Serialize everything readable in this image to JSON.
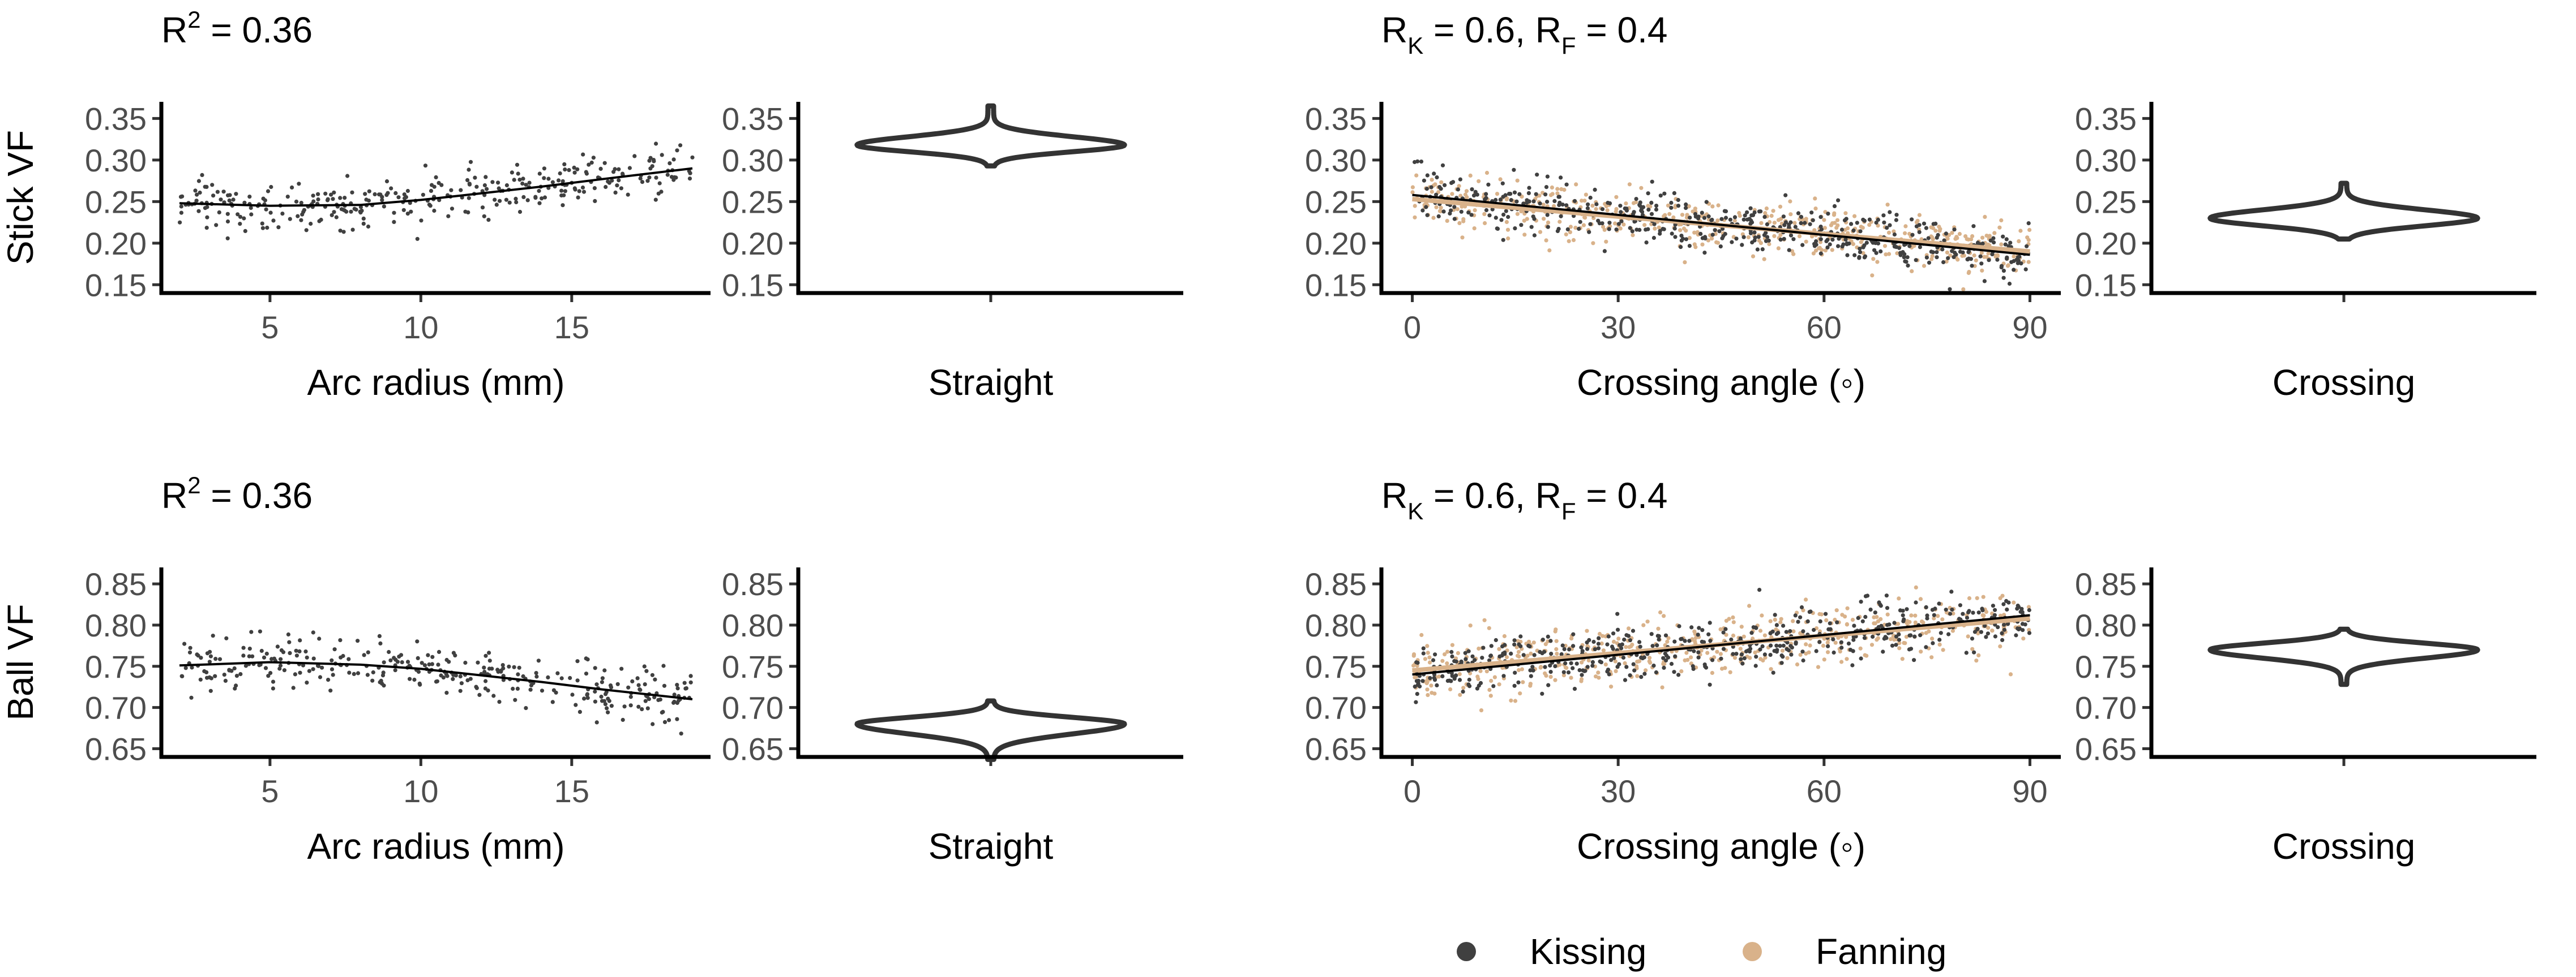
{
  "colors": {
    "kissing": "#404040",
    "fanning": "#d9b28a",
    "line": "#000000",
    "violin": "#333333"
  },
  "legend": {
    "items": [
      {
        "label": "Kissing",
        "color": "#404040"
      },
      {
        "label": "Fanning",
        "color": "#d9b28a"
      }
    ],
    "placement": "bottom-center"
  },
  "chart_data": [
    {
      "id": "stick-arc",
      "type": "scatter",
      "row": "Stick VF",
      "ylabel": "Stick VF",
      "annotation": {
        "base": "R",
        "sup": "2",
        "rest": " = 0.36"
      },
      "xlabel": "Arc radius (mm)",
      "xlim": [
        1.4,
        19.6
      ],
      "xticks": [
        5,
        10,
        15
      ],
      "ylim": [
        0.14,
        0.37
      ],
      "yticks": [
        0.15,
        0.2,
        0.25,
        0.3,
        0.35
      ],
      "yticklabels": [
        "0.15",
        "0.20",
        "0.25",
        "0.30",
        "0.35"
      ],
      "series": [
        {
          "name": "Kissing",
          "x_range": [
            2,
            19
          ],
          "trend": [
            [
              2,
              0.248
            ],
            [
              5,
              0.245
            ],
            [
              8,
              0.246
            ],
            [
              10,
              0.252
            ],
            [
              12,
              0.26
            ],
            [
              14,
              0.268
            ],
            [
              16,
              0.277
            ],
            [
              19,
              0.29
            ]
          ],
          "spread": 0.016,
          "n": 330
        }
      ],
      "fit": [
        [
          2,
          0.248
        ],
        [
          5,
          0.245
        ],
        [
          8,
          0.246
        ],
        [
          10,
          0.252
        ],
        [
          12,
          0.26
        ],
        [
          14,
          0.268
        ],
        [
          16,
          0.277
        ],
        [
          19,
          0.29
        ]
      ]
    },
    {
      "id": "stick-straight",
      "type": "violin",
      "row": "Stick VF",
      "xlabel": "Straight",
      "ylim": [
        0.14,
        0.37
      ],
      "yticks": [
        0.15,
        0.2,
        0.25,
        0.3,
        0.35
      ],
      "yticklabels": [
        "0.15",
        "0.20",
        "0.25",
        "0.30",
        "0.35"
      ],
      "violin": {
        "y_min": 0.293,
        "y_max": 0.365,
        "peak": 0.318,
        "sd_low": 0.008,
        "sd_high": 0.01,
        "half_width_frac": 0.34
      }
    },
    {
      "id": "stick-crossing",
      "type": "scatter",
      "row": "Stick VF",
      "annotation": {
        "base": "R",
        "sub1": "K",
        "mid": " = 0.6, R",
        "sub2": "F",
        "rest": " = 0.4"
      },
      "xlabel": "Crossing angle (◦)",
      "xlim": [
        -4.5,
        94.5
      ],
      "xticks": [
        0,
        30,
        60,
        90
      ],
      "ylim": [
        0.14,
        0.37
      ],
      "yticks": [
        0.15,
        0.2,
        0.25,
        0.3,
        0.35
      ],
      "yticklabels": [
        "0.15",
        "0.20",
        "0.25",
        "0.30",
        "0.35"
      ],
      "series": [
        {
          "name": "Fanning",
          "x_range": [
            0,
            90
          ],
          "trend": [
            [
              0,
              0.255
            ],
            [
              90,
              0.188
            ]
          ],
          "spread": 0.016,
          "n": 520
        },
        {
          "name": "Kissing",
          "x_range": [
            0,
            90
          ],
          "trend": [
            [
              0,
              0.26
            ],
            [
              90,
              0.185
            ]
          ],
          "spread": 0.016,
          "n": 520
        }
      ],
      "fit": [
        [
          0,
          0.258
        ],
        [
          90,
          0.186
        ]
      ],
      "fit_fanning": [
        [
          0,
          0.253
        ],
        [
          90,
          0.19
        ]
      ]
    },
    {
      "id": "stick-crossing-violin",
      "type": "violin",
      "row": "Stick VF",
      "xlabel": "Crossing",
      "ylim": [
        0.14,
        0.37
      ],
      "yticks": [
        0.15,
        0.2,
        0.25,
        0.3,
        0.35
      ],
      "yticklabels": [
        "0.15",
        "0.20",
        "0.25",
        "0.30",
        "0.35"
      ],
      "violin": {
        "y_min": 0.205,
        "y_max": 0.272,
        "peak": 0.23,
        "sd_low": 0.009,
        "sd_high": 0.01,
        "half_width_frac": 0.34
      }
    },
    {
      "id": "ball-arc",
      "type": "scatter",
      "row": "Ball VF",
      "ylabel": "Ball VF",
      "annotation": {
        "base": "R",
        "sup": "2",
        "rest": " = 0.36"
      },
      "xlabel": "Arc radius (mm)",
      "xlim": [
        1.4,
        19.6
      ],
      "xticks": [
        5,
        10,
        15
      ],
      "ylim": [
        0.64,
        0.87
      ],
      "yticks": [
        0.65,
        0.7,
        0.75,
        0.8,
        0.85
      ],
      "yticklabels": [
        "0.65",
        "0.70",
        "0.75",
        "0.80",
        "0.85"
      ],
      "series": [
        {
          "name": "Kissing",
          "x_range": [
            2,
            19
          ],
          "trend": [
            [
              2,
              0.751
            ],
            [
              5,
              0.755
            ],
            [
              8,
              0.752
            ],
            [
              10,
              0.747
            ],
            [
              12,
              0.739
            ],
            [
              14,
              0.731
            ],
            [
              16,
              0.722
            ],
            [
              19,
              0.71
            ]
          ],
          "spread": 0.016,
          "n": 330
        }
      ],
      "fit": [
        [
          2,
          0.751
        ],
        [
          5,
          0.755
        ],
        [
          8,
          0.752
        ],
        [
          10,
          0.747
        ],
        [
          12,
          0.739
        ],
        [
          14,
          0.731
        ],
        [
          16,
          0.722
        ],
        [
          19,
          0.71
        ]
      ]
    },
    {
      "id": "ball-straight",
      "type": "violin",
      "row": "Ball VF",
      "xlabel": "Straight",
      "ylim": [
        0.64,
        0.87
      ],
      "yticks": [
        0.65,
        0.7,
        0.75,
        0.8,
        0.85
      ],
      "yticklabels": [
        "0.65",
        "0.70",
        "0.75",
        "0.80",
        "0.85"
      ],
      "violin": {
        "y_min": 0.637,
        "y_max": 0.708,
        "peak": 0.68,
        "sd_low": 0.012,
        "sd_high": 0.008,
        "half_width_frac": 0.34
      }
    },
    {
      "id": "ball-crossing",
      "type": "scatter",
      "row": "Ball VF",
      "annotation": {
        "base": "R",
        "sub1": "K",
        "mid": " = 0.6, R",
        "sub2": "F",
        "rest": " = 0.4"
      },
      "xlabel": "Crossing angle (◦)",
      "xlim": [
        -4.5,
        94.5
      ],
      "xticks": [
        0,
        30,
        60,
        90
      ],
      "ylim": [
        0.64,
        0.87
      ],
      "yticks": [
        0.65,
        0.7,
        0.75,
        0.8,
        0.85
      ],
      "yticklabels": [
        "0.65",
        "0.70",
        "0.75",
        "0.80",
        "0.85"
      ],
      "series": [
        {
          "name": "Fanning",
          "x_range": [
            0,
            90
          ],
          "trend": [
            [
              0,
              0.745
            ],
            [
              90,
              0.81
            ]
          ],
          "spread": 0.018,
          "n": 520
        },
        {
          "name": "Kissing",
          "x_range": [
            0,
            90
          ],
          "trend": [
            [
              0,
              0.74
            ],
            [
              90,
              0.812
            ]
          ],
          "spread": 0.016,
          "n": 520
        }
      ],
      "fit": [
        [
          0,
          0.74
        ],
        [
          90,
          0.812
        ]
      ],
      "fit_fanning": [
        [
          0,
          0.745
        ],
        [
          90,
          0.808
        ]
      ]
    },
    {
      "id": "ball-crossing-violin",
      "type": "violin",
      "row": "Ball VF",
      "xlabel": "Crossing",
      "ylim": [
        0.64,
        0.87
      ],
      "yticks": [
        0.65,
        0.7,
        0.75,
        0.8,
        0.85
      ],
      "yticklabels": [
        "0.65",
        "0.70",
        "0.75",
        "0.80",
        "0.85"
      ],
      "violin": {
        "y_min": 0.728,
        "y_max": 0.795,
        "peak": 0.77,
        "sd_low": 0.01,
        "sd_high": 0.008,
        "half_width_frac": 0.34
      }
    }
  ]
}
